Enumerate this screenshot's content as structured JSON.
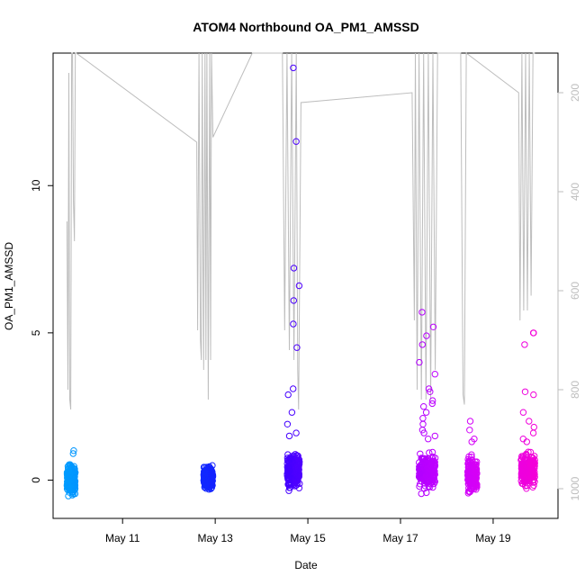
{
  "chart_data": {
    "type": "scatter",
    "title": "ATOM4 Northbound OA_PM1_AMSSD",
    "xlabel": "Date",
    "ylabel": "OA_PM1_AMSSD",
    "x_tick_labels": [
      "May 11",
      "May 13",
      "May 15",
      "May 17",
      "May 19"
    ],
    "x_ticks_day": [
      11,
      13,
      15,
      17,
      19
    ],
    "xlim_day": [
      9.5,
      20.4
    ],
    "y_ticks": [
      "0",
      "5",
      "10"
    ],
    "y_tick_values": [
      0,
      5,
      10
    ],
    "ylim": [
      -1.3,
      14.5
    ],
    "y2_ticks": [
      "200",
      "400",
      "600",
      "800",
      "1000"
    ],
    "y2_tick_values": [
      200,
      400,
      600,
      800,
      1000
    ],
    "y2lim": [
      1060,
      120
    ],
    "grid": false,
    "legend": "none",
    "colors": {
      "secondary_line": "#bdbdbd",
      "point_gradient": [
        "#00a8ff",
        "#0050ff",
        "#2200ff",
        "#8a00ff",
        "#cc00ff",
        "#ff00cc"
      ]
    },
    "series": [
      {
        "description_of_color": "points colored by time, cyan to magenta",
        "clusters": [
          {
            "day_range": [
              9.8,
              9.98
            ],
            "y_core": [
              -0.6,
              0.7
            ],
            "outliers": [
              1.0,
              0.9
            ]
          },
          {
            "day_range": [
              12.75,
              12.95
            ],
            "y_core": [
              -0.4,
              0.6
            ],
            "outliers": []
          },
          {
            "day_range": [
              14.55,
              14.82
            ],
            "y_core": [
              -0.5,
              1.1
            ],
            "outliers": [
              14.0,
              11.5,
              7.2,
              6.6,
              6.1,
              5.3,
              4.5,
              3.1,
              2.9,
              2.3,
              1.9,
              1.6,
              1.5
            ]
          },
          {
            "day_range": [
              17.4,
              17.75
            ],
            "y_core": [
              -0.5,
              1.1
            ],
            "outliers": [
              5.7,
              5.2,
              4.9,
              4.6,
              4.0,
              3.6,
              3.1,
              3.0,
              2.7,
              2.6,
              2.5,
              2.3,
              2.1,
              1.9,
              1.7,
              1.6,
              1.5,
              1.4
            ]
          },
          {
            "day_range": [
              18.45,
              18.65
            ],
            "y_core": [
              -0.6,
              1.0
            ],
            "outliers": [
              2.0,
              1.7,
              1.4,
              1.3
            ]
          },
          {
            "day_range": [
              19.6,
              19.9
            ],
            "y_core": [
              -0.4,
              1.1
            ],
            "outliers": [
              5.0,
              5.0,
              4.6,
              3.0,
              2.9,
              2.3,
              2.0,
              1.8,
              1.6,
              1.4,
              1.3
            ]
          }
        ]
      },
      {
        "description_of_color": "grey trace on right axis",
        "line_points": [
          [
            9.8,
            460
          ],
          [
            9.82,
            800
          ],
          [
            9.84,
            160
          ],
          [
            9.86,
            820
          ],
          [
            9.88,
            840
          ],
          [
            9.9,
            120
          ],
          [
            9.92,
            120
          ],
          [
            9.94,
            420
          ],
          [
            9.96,
            500
          ],
          [
            9.98,
            120
          ],
          [
            10.0,
            100
          ],
          [
            12.6,
            300
          ],
          [
            12.62,
            680
          ],
          [
            12.65,
            120
          ],
          [
            12.68,
            700
          ],
          [
            12.7,
            740
          ],
          [
            12.72,
            120
          ],
          [
            12.75,
            760
          ],
          [
            12.78,
            120
          ],
          [
            12.8,
            740
          ],
          [
            12.82,
            120
          ],
          [
            12.85,
            820
          ],
          [
            12.88,
            120
          ],
          [
            12.9,
            740
          ],
          [
            12.92,
            120
          ],
          [
            12.95,
            290
          ],
          [
            13.8,
            100
          ],
          [
            14.45,
            120
          ],
          [
            14.5,
            680
          ],
          [
            14.55,
            120
          ],
          [
            14.6,
            720
          ],
          [
            14.65,
            120
          ],
          [
            14.7,
            740
          ],
          [
            14.75,
            120
          ],
          [
            14.78,
            760
          ],
          [
            14.8,
            840
          ],
          [
            14.85,
            220
          ],
          [
            17.25,
            200
          ],
          [
            17.3,
            660
          ],
          [
            17.32,
            120
          ],
          [
            17.36,
            800
          ],
          [
            17.4,
            120
          ],
          [
            17.45,
            820
          ],
          [
            17.5,
            120
          ],
          [
            17.55,
            820
          ],
          [
            17.6,
            120
          ],
          [
            17.65,
            820
          ],
          [
            17.7,
            120
          ],
          [
            17.75,
            760
          ],
          [
            17.8,
            120
          ],
          [
            18.3,
            110
          ],
          [
            18.35,
            810
          ],
          [
            18.38,
            830
          ],
          [
            18.42,
            120
          ],
          [
            19.55,
            200
          ],
          [
            19.58,
            660
          ],
          [
            19.62,
            120
          ],
          [
            19.66,
            640
          ],
          [
            19.7,
            120
          ],
          [
            19.74,
            640
          ],
          [
            19.78,
            120
          ],
          [
            19.82,
            610
          ],
          [
            19.86,
            120
          ],
          [
            19.9,
            120
          ]
        ]
      }
    ]
  }
}
